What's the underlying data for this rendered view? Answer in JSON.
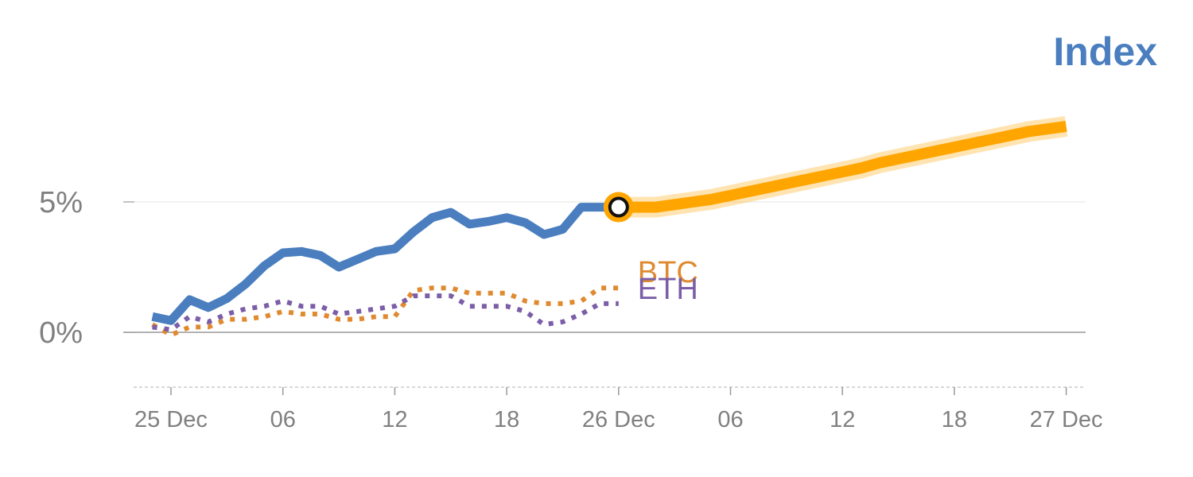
{
  "chart_data": {
    "type": "line",
    "title": "Index",
    "title_color": "#4a7ebf",
    "ylim": [
      -2,
      8.6
    ],
    "y_ticks": [
      {
        "value": 5,
        "label": "5%"
      },
      {
        "value": 0,
        "label": "0%"
      }
    ],
    "x_ticks": [
      {
        "hours": 0,
        "label": "25 Dec"
      },
      {
        "hours": 6,
        "label": "06"
      },
      {
        "hours": 12,
        "label": "12"
      },
      {
        "hours": 18,
        "label": "18"
      },
      {
        "hours": 24,
        "label": "26 Dec"
      },
      {
        "hours": 30,
        "label": "06"
      },
      {
        "hours": 36,
        "label": "12"
      },
      {
        "hours": 42,
        "label": "18"
      },
      {
        "hours": 48,
        "label": "27 Dec"
      }
    ],
    "grid": true,
    "series": [
      {
        "name": "BTC",
        "color": "#e08a30",
        "style": "dotted",
        "x": [
          -1,
          0,
          1,
          2,
          3,
          4,
          5,
          6,
          7,
          8,
          9,
          10,
          11,
          12,
          13,
          14,
          15,
          16,
          17,
          18,
          19,
          20,
          21,
          22,
          23,
          24
        ],
        "values": [
          0.3,
          -0.1,
          0.2,
          0.2,
          0.5,
          0.5,
          0.6,
          0.8,
          0.7,
          0.7,
          0.5,
          0.5,
          0.6,
          0.6,
          1.6,
          1.7,
          1.7,
          1.5,
          1.5,
          1.5,
          1.2,
          1.1,
          1.1,
          1.2,
          1.7,
          1.7
        ]
      },
      {
        "name": "ETH",
        "color": "#7b5ea7",
        "style": "dotted",
        "x": [
          -1,
          0,
          1,
          2,
          3,
          4,
          5,
          6,
          7,
          8,
          9,
          10,
          11,
          12,
          13,
          14,
          15,
          16,
          17,
          18,
          19,
          20,
          21,
          22,
          23,
          24
        ],
        "values": [
          0.2,
          0.1,
          0.6,
          0.4,
          0.7,
          0.9,
          1.0,
          1.2,
          1.0,
          1.0,
          0.7,
          0.8,
          0.9,
          1.0,
          1.4,
          1.4,
          1.4,
          1.0,
          1.0,
          1.0,
          0.8,
          0.3,
          0.4,
          0.7,
          1.1,
          1.1
        ]
      },
      {
        "name": "",
        "color": "#4a7ebf",
        "style": "solid",
        "x": [
          -1,
          0,
          1,
          2,
          3,
          4,
          5,
          6,
          7,
          8,
          9,
          10,
          11,
          12,
          13,
          14,
          15,
          16,
          17,
          18,
          19,
          20,
          21,
          22,
          23,
          24
        ],
        "values": [
          0.6,
          0.45,
          1.25,
          0.95,
          1.3,
          1.85,
          2.55,
          3.05,
          3.1,
          2.95,
          2.5,
          2.8,
          3.1,
          3.2,
          3.85,
          4.4,
          4.6,
          4.15,
          4.25,
          4.4,
          4.2,
          3.75,
          3.95,
          4.8,
          4.8,
          4.8
        ]
      },
      {
        "name": "",
        "color": "#ffa500",
        "style": "solid-thick",
        "x": [
          24,
          25,
          26,
          27,
          28,
          29,
          30,
          31,
          32,
          33,
          34,
          35,
          36,
          37,
          38,
          39,
          40,
          41,
          42,
          43,
          44,
          45,
          46,
          47,
          48
        ],
        "values": [
          4.8,
          4.8,
          4.8,
          4.9,
          5.0,
          5.1,
          5.25,
          5.4,
          5.55,
          5.7,
          5.85,
          6.0,
          6.15,
          6.3,
          6.5,
          6.65,
          6.8,
          6.95,
          7.1,
          7.25,
          7.4,
          7.55,
          7.7,
          7.8,
          7.9
        ]
      }
    ],
    "current_point": {
      "x": 24,
      "value": 4.8
    }
  }
}
